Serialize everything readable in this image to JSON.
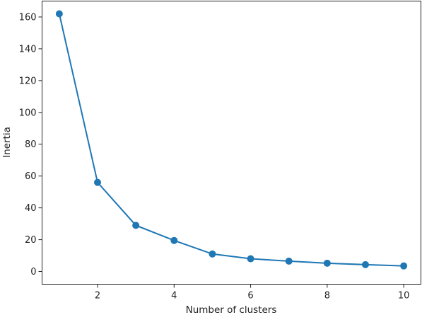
{
  "chart_data": {
    "type": "line",
    "xlabel": "Number of clusters",
    "ylabel": "Inertia",
    "xlim": [
      0.55,
      10.45
    ],
    "ylim": [
      -8,
      170
    ],
    "xticks": [
      2,
      4,
      6,
      8,
      10
    ],
    "yticks": [
      0,
      20,
      40,
      60,
      80,
      100,
      120,
      140,
      160
    ],
    "grid": false,
    "series": [
      {
        "color": "#1f77b4",
        "marker": "circle",
        "x": [
          1,
          2,
          3,
          4,
          5,
          6,
          7,
          8,
          9,
          10
        ],
        "y": [
          162,
          56,
          29,
          19.5,
          11,
          8,
          6.5,
          5.2,
          4.3,
          3.5
        ]
      }
    ]
  }
}
